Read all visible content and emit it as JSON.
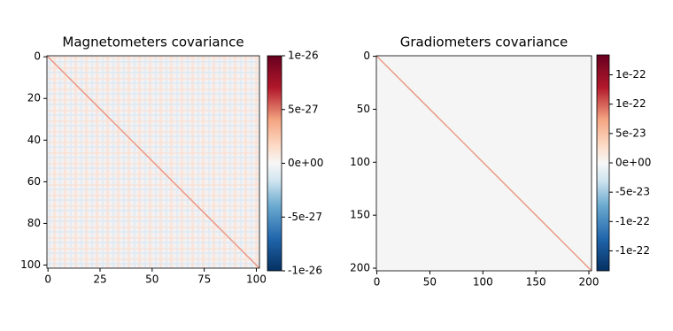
{
  "chart_data": [
    {
      "type": "heatmap",
      "title": "Magnetometers covariance",
      "xlim": [
        -0.5,
        101.5
      ],
      "ylim": [
        101.5,
        -0.5
      ],
      "xticks": [
        0,
        25,
        50,
        75,
        100
      ],
      "yticks": [
        0,
        20,
        40,
        60,
        80,
        100
      ],
      "clim": [
        -1e-26,
        1e-26
      ],
      "cticks": [
        1e-26,
        5e-27,
        {
          "value": 0,
          "label": "0e+00"
        },
        -5e-27,
        -1e-26
      ]
    },
    {
      "type": "heatmap",
      "title": "Gradiometers covariance",
      "xlim": [
        -0.5,
        202.5
      ],
      "ylim": [
        202.5,
        -0.5
      ],
      "xticks": [
        0,
        50,
        100,
        150,
        200
      ],
      "yticks": [
        0,
        50,
        100,
        150,
        200
      ],
      "clim": [
        -1.84e-22,
        1.84e-22
      ],
      "cticks": [
        {
          "value": 1.5e-22,
          "label": "1e-22"
        },
        {
          "value": 1e-22,
          "label": "1e-22"
        },
        5e-23,
        {
          "value": 0,
          "label": "0e+00"
        },
        -5e-23,
        {
          "value": -1e-22,
          "label": "-1e-22"
        },
        {
          "value": -1.5e-22,
          "label": "-1e-22"
        }
      ]
    }
  ]
}
